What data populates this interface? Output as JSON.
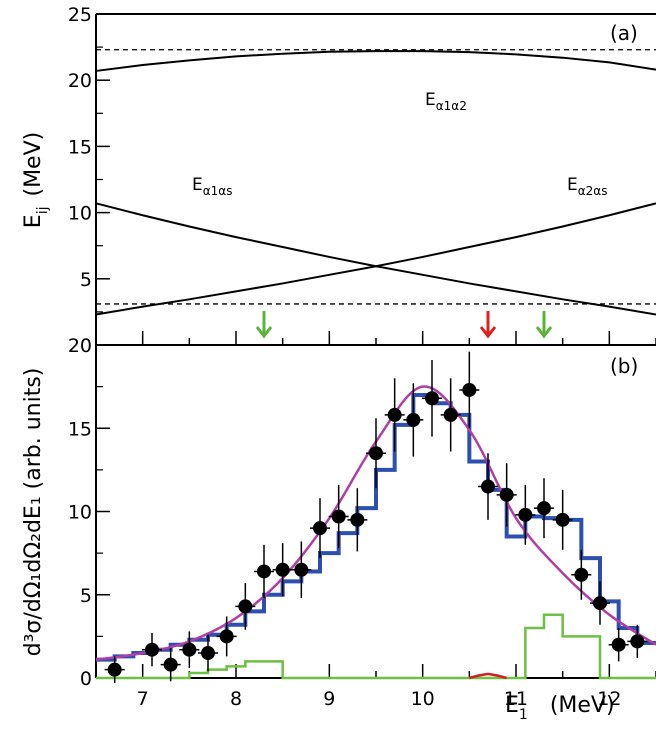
{
  "chart_data": [
    {
      "panel": "(a)",
      "type": "line",
      "ylabel": "E",
      "ylabel_sub": "ij",
      "ylabel_unit": "(MeV)",
      "xlim": [
        6.5,
        12.5
      ],
      "ylim": [
        0,
        25
      ],
      "yticks": [
        "0",
        "5",
        "10",
        "15",
        "20",
        "25"
      ],
      "series": [
        {
          "name": "E",
          "sub": "α1α2",
          "x": [
            6.5,
            7.0,
            7.5,
            8.0,
            8.5,
            9.0,
            9.5,
            10.0,
            10.5,
            11.0,
            11.5,
            12.0,
            12.5
          ],
          "y": [
            20.7,
            21.15,
            21.5,
            21.8,
            22.0,
            22.15,
            22.2,
            22.2,
            22.12,
            21.95,
            21.7,
            21.35,
            20.8
          ]
        },
        {
          "name": "E",
          "sub": "α1αs",
          "x": [
            6.5,
            7.0,
            7.5,
            8.0,
            8.5,
            9.0,
            9.5,
            10.0,
            10.5,
            11.0,
            11.5,
            12.0,
            12.5
          ],
          "y": [
            10.7,
            9.8,
            8.95,
            8.15,
            7.4,
            6.65,
            5.95,
            5.3,
            4.65,
            4.05,
            3.45,
            2.9,
            2.3
          ]
        },
        {
          "name": "E",
          "sub": "α2αs",
          "x": [
            6.5,
            7.0,
            7.5,
            8.0,
            8.5,
            9.0,
            9.5,
            10.0,
            10.5,
            11.0,
            11.5,
            12.0,
            12.5
          ],
          "y": [
            2.3,
            2.9,
            3.45,
            4.05,
            4.65,
            5.3,
            5.95,
            6.65,
            7.4,
            8.15,
            8.95,
            9.8,
            10.7
          ]
        }
      ],
      "dashed_levels": [
        22.3,
        3.1
      ],
      "arrows": [
        {
          "x": 8.3,
          "color": "#5ab33a"
        },
        {
          "x": 10.7,
          "color": "#e02020"
        },
        {
          "x": 11.3,
          "color": "#5ab33a"
        }
      ]
    },
    {
      "panel": "(b)",
      "type": "scatter",
      "ylabel": "d³σ/dΩ₁dΩ₂dE₁ (arb. units)",
      "xlabel": "E",
      "xlabel_sub": "1",
      "xlabel_unit": "(MeV)",
      "xlim": [
        6.5,
        12.5
      ],
      "ylim": [
        0,
        20
      ],
      "xticks": [
        "7",
        "8",
        "9",
        "10",
        "11",
        "12"
      ],
      "yticks": [
        "0",
        "5",
        "10",
        "15",
        "20"
      ],
      "points": {
        "x": [
          6.7,
          7.1,
          7.3,
          7.5,
          7.7,
          7.9,
          8.1,
          8.3,
          8.5,
          8.7,
          8.9,
          9.1,
          9.3,
          9.5,
          9.7,
          9.9,
          10.1,
          10.3,
          10.5,
          10.7,
          10.9,
          11.1,
          11.3,
          11.5,
          11.7,
          11.9,
          12.1,
          12.3
        ],
        "y": [
          0.5,
          1.7,
          0.8,
          1.7,
          1.5,
          2.5,
          4.3,
          6.4,
          6.5,
          6.5,
          9.0,
          9.7,
          9.5,
          13.5,
          15.8,
          15.5,
          16.8,
          15.8,
          17.3,
          11.5,
          11.0,
          9.8,
          10.2,
          9.5,
          6.2,
          4.5,
          2.0,
          2.2
        ],
        "err": [
          0.8,
          1.0,
          1.0,
          1.1,
          1.1,
          1.2,
          1.4,
          1.6,
          1.6,
          1.7,
          1.8,
          1.9,
          1.9,
          2.1,
          2.2,
          2.2,
          2.3,
          2.2,
          2.3,
          2.0,
          1.9,
          1.8,
          1.8,
          1.8,
          1.5,
          1.3,
          1.0,
          1.0
        ]
      },
      "histograms": [
        {
          "name": "blue",
          "color": "#2c4fb0",
          "x": [
            6.5,
            6.7,
            6.9,
            7.1,
            7.3,
            7.5,
            7.7,
            7.9,
            8.1,
            8.3,
            8.5,
            8.7,
            8.9,
            9.1,
            9.3,
            9.5,
            9.7,
            9.9,
            10.1,
            10.3,
            10.5,
            10.7,
            10.9,
            11.1,
            11.3,
            11.5,
            11.7,
            11.9,
            12.1,
            12.3
          ],
          "y": [
            1.1,
            1.3,
            1.5,
            1.7,
            2.0,
            2.3,
            2.6,
            3.2,
            4.0,
            5.0,
            5.8,
            6.4,
            7.5,
            8.7,
            10.2,
            12.5,
            15.2,
            17.0,
            16.5,
            15.8,
            13.0,
            11.3,
            8.5,
            9.7,
            9.6,
            9.5,
            7.2,
            4.6,
            3.0,
            2.1
          ]
        },
        {
          "name": "green",
          "color": "#6dc042",
          "x": [
            6.5,
            6.7,
            6.9,
            7.1,
            7.3,
            7.5,
            7.7,
            7.9,
            8.1,
            8.3,
            8.5,
            8.7,
            8.9,
            9.1,
            9.3,
            9.5,
            9.7,
            9.9,
            10.1,
            10.3,
            10.5,
            10.7,
            10.9,
            11.1,
            11.3,
            11.5,
            11.7,
            11.9,
            12.1,
            12.3
          ],
          "y": [
            0,
            0,
            0,
            0,
            0,
            0.3,
            0.5,
            0.7,
            1.0,
            1.0,
            0,
            0,
            0,
            0,
            0,
            0,
            0,
            0,
            0,
            0,
            0,
            0,
            0,
            3.0,
            3.8,
            2.5,
            2.5,
            0,
            0,
            0
          ]
        }
      ],
      "fit_curve": {
        "color": "#b03ea6",
        "x": [
          6.5,
          7.0,
          7.5,
          8.0,
          8.5,
          9.0,
          9.5,
          10.0,
          10.5,
          11.0,
          11.5,
          12.0,
          12.5
        ],
        "y": [
          1.1,
          1.5,
          2.2,
          3.6,
          6.0,
          9.6,
          14.2,
          17.5,
          14.9,
          9.6,
          6.3,
          3.8,
          2.0
        ]
      },
      "small_peak": {
        "color": "#d02020",
        "x": [
          10.5,
          10.6,
          10.7,
          10.8,
          10.9
        ],
        "y": [
          0,
          0.15,
          0.25,
          0.15,
          0
        ]
      }
    }
  ]
}
